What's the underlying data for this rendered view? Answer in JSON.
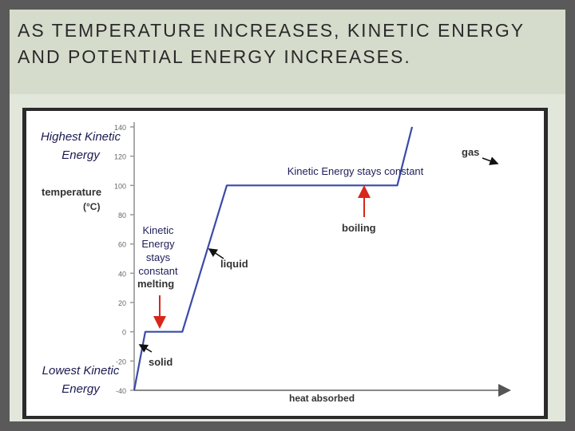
{
  "slide": {
    "title": "AS TEMPERATURE INCREASES, KINETIC ENERGY AND POTENTIAL ENERGY INCREASES."
  },
  "annotations": {
    "highest_kinetic": "Highest Kinetic Energy",
    "lowest_kinetic": "Lowest Kinetic Energy",
    "ke_constant_boiling": "Kinetic Energy stays constant",
    "ke_constant_melting": "Kinetic Energy stays constant"
  },
  "chart_data": {
    "type": "line",
    "title": "",
    "xlabel": "heat absorbed",
    "ylabel": "temperature (°C)",
    "ylim": [
      -40,
      140
    ],
    "y_ticks": [
      140,
      120,
      100,
      80,
      60,
      40,
      20,
      0,
      -20,
      -40
    ],
    "series": [
      {
        "points": [
          {
            "x": 0,
            "y": -40
          },
          {
            "x": 3,
            "y": 0
          },
          {
            "x": 13,
            "y": 0
          },
          {
            "x": 25,
            "y": 100
          },
          {
            "x": 71,
            "y": 100
          },
          {
            "x": 75,
            "y": 140
          }
        ]
      }
    ],
    "labels": {
      "solid": "solid",
      "melting": "melting",
      "liquid": "liquid",
      "boiling": "boiling",
      "gas": "gas"
    },
    "line_color": "#3a4aa8",
    "arrow_color": "#d8261a"
  }
}
